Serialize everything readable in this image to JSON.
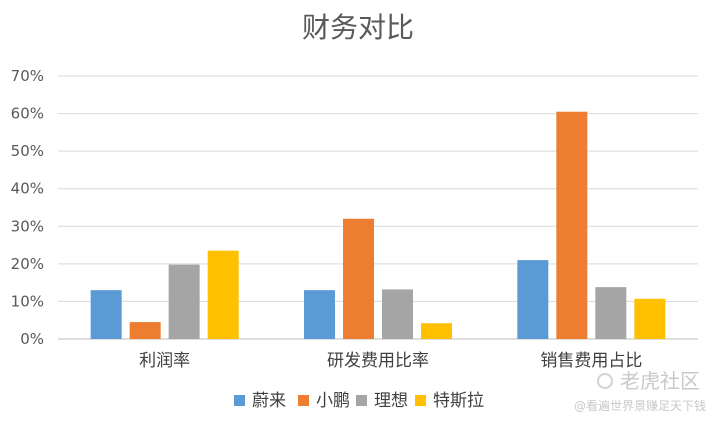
{
  "chart_data": {
    "type": "bar",
    "title": "财务对比",
    "categories": [
      "利润率",
      "研发费用比率",
      "销售费用占比"
    ],
    "series": [
      {
        "name": "蔚来",
        "color": "#5b9bd5",
        "values": [
          0.13,
          0.13,
          0.21
        ]
      },
      {
        "name": "小鹏",
        "color": "#ed7d31",
        "values": [
          0.045,
          0.32,
          0.605
        ]
      },
      {
        "name": "理想",
        "color": "#a5a5a5",
        "values": [
          0.198,
          0.132,
          0.138
        ]
      },
      {
        "name": "特斯拉",
        "color": "#ffc000",
        "values": [
          0.235,
          0.042,
          0.107
        ]
      }
    ],
    "ylim": [
      0,
      0.7
    ],
    "yticks": [
      "0%",
      "10%",
      "20%",
      "30%",
      "40%",
      "50%",
      "60%",
      "70%"
    ],
    "grid": true,
    "legend": "bottom",
    "xlabel": "",
    "ylabel": ""
  },
  "watermark": {
    "main": "老虎社区",
    "sub": "@看遍世界景赚足天下钱"
  }
}
